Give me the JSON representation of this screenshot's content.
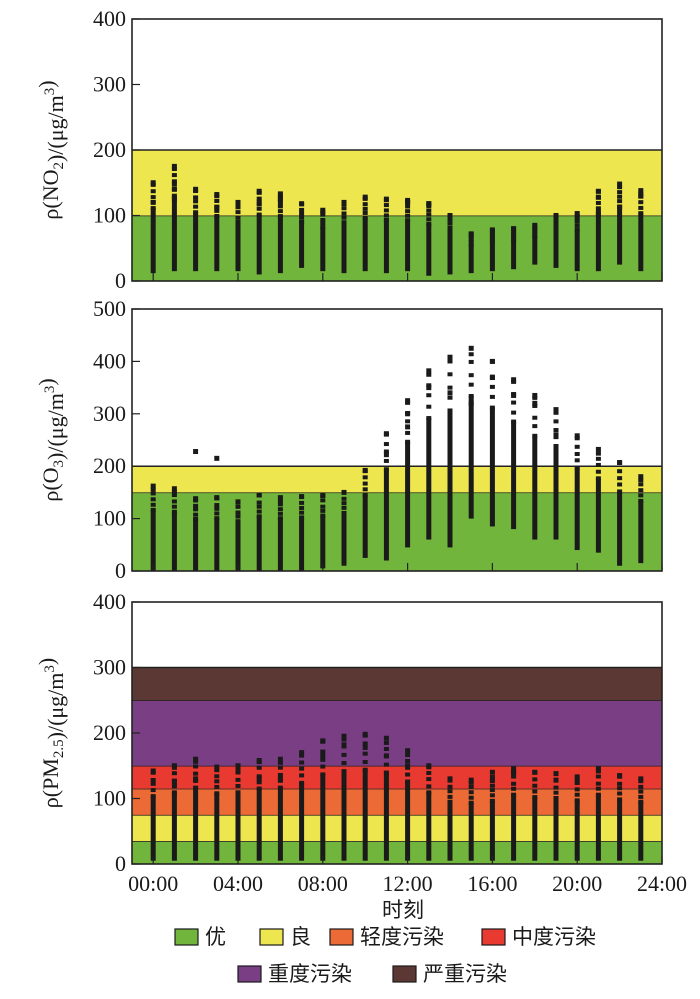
{
  "band_colors": {
    "excellent": "#72b53c",
    "good": "#ede64f",
    "light": "#ec6a35",
    "moderate": "#e83a31",
    "heavy": "#7a3e85",
    "severe": "#5c3834"
  },
  "legend": [
    {
      "key": "excellent",
      "label": "优"
    },
    {
      "key": "good",
      "label": "良"
    },
    {
      "key": "light",
      "label": "轻度污染"
    },
    {
      "key": "moderate",
      "label": "中度污染"
    },
    {
      "key": "heavy",
      "label": "重度污染"
    },
    {
      "key": "severe",
      "label": "严重污染"
    }
  ],
  "x_axis": {
    "title": "时刻",
    "tick_labels": [
      "00:00",
      "04:00",
      "08:00",
      "12:00",
      "16:00",
      "20:00",
      "24:00"
    ],
    "range": [
      -1,
      24
    ]
  },
  "chart_data": [
    {
      "type": "scatter",
      "id": "no2",
      "title": "",
      "ylabel_prefix": "ρ(NO",
      "ylabel_sub": "2",
      "ylabel_suffix": ")/(μg/m",
      "ylabel_sup": "3",
      "ylabel_end": ")",
      "ylim": [
        0,
        400
      ],
      "yticks": [
        0,
        100,
        200,
        300,
        400
      ],
      "bands": [
        {
          "key": "excellent",
          "from": 0,
          "to": 100
        },
        {
          "key": "good",
          "from": 100,
          "to": 200
        }
      ],
      "hours": [
        0,
        1,
        2,
        3,
        4,
        5,
        6,
        7,
        8,
        9,
        10,
        11,
        12,
        13,
        14,
        15,
        16,
        17,
        18,
        19,
        20,
        21,
        22,
        23
      ],
      "min": [
        12,
        15,
        15,
        15,
        15,
        10,
        12,
        20,
        15,
        12,
        15,
        12,
        15,
        8,
        10,
        12,
        15,
        18,
        25,
        20,
        15,
        15,
        25,
        15
      ],
      "max": [
        150,
        175,
        140,
        132,
        120,
        137,
        133,
        118,
        108,
        120,
        128,
        125,
        123,
        118,
        95,
        72,
        78,
        80,
        85,
        95,
        103,
        137,
        148,
        138
      ],
      "outliers": [
        [
          0,
          120
        ],
        [
          1,
          148
        ],
        [
          1,
          140
        ],
        [
          1,
          125
        ],
        [
          3,
          112
        ],
        [
          5,
          120
        ],
        [
          6,
          125
        ],
        [
          6,
          120
        ],
        [
          12,
          120
        ],
        [
          13,
          118
        ],
        [
          14,
          100
        ],
        [
          19,
          100
        ],
        [
          21,
          128
        ],
        [
          21,
          105
        ],
        [
          22,
          113
        ],
        [
          23,
          130
        ]
      ]
    },
    {
      "type": "scatter",
      "id": "o3",
      "title": "",
      "ylabel_prefix": "ρ(O",
      "ylabel_sub": "3",
      "ylabel_suffix": ")/(μg/m",
      "ylabel_sup": "3",
      "ylabel_end": ")",
      "ylim": [
        0,
        500
      ],
      "yticks": [
        0,
        100,
        200,
        300,
        400,
        500
      ],
      "bands": [
        {
          "key": "excellent",
          "from": 0,
          "to": 150
        },
        {
          "key": "good",
          "from": 150,
          "to": 200
        }
      ],
      "hours": [
        0,
        1,
        2,
        3,
        4,
        5,
        6,
        7,
        8,
        9,
        10,
        11,
        12,
        13,
        14,
        15,
        16,
        17,
        18,
        19,
        20,
        21,
        22,
        23
      ],
      "min": [
        0,
        0,
        0,
        0,
        0,
        0,
        0,
        0,
        5,
        10,
        25,
        20,
        45,
        60,
        45,
        100,
        85,
        80,
        60,
        60,
        40,
        35,
        10,
        15
      ],
      "max": [
        162,
        157,
        138,
        140,
        132,
        145,
        140,
        142,
        145,
        150,
        192,
        262,
        325,
        382,
        408,
        425,
        400,
        365,
        335,
        308,
        258,
        232,
        207,
        180
      ],
      "outliers": [
        [
          2,
          228
        ],
        [
          3,
          215
        ],
        [
          11,
          222
        ],
        [
          12,
          300
        ],
        [
          12,
          275
        ],
        [
          13,
          350
        ],
        [
          14,
          340
        ],
        [
          14,
          300
        ],
        [
          15,
          320
        ],
        [
          16,
          370
        ],
        [
          17,
          335
        ],
        [
          18,
          320
        ],
        [
          19,
          260
        ]
      ]
    },
    {
      "type": "scatter",
      "id": "pm25",
      "title": "",
      "ylabel_prefix": "ρ(PM",
      "ylabel_sub": "2.5",
      "ylabel_suffix": ")/(μg/m",
      "ylabel_sup": "3",
      "ylabel_end": ")",
      "ylim": [
        0,
        400
      ],
      "yticks": [
        0,
        100,
        200,
        300,
        400
      ],
      "bands": [
        {
          "key": "excellent",
          "from": 0,
          "to": 35
        },
        {
          "key": "good",
          "from": 35,
          "to": 75
        },
        {
          "key": "light",
          "from": 75,
          "to": 115
        },
        {
          "key": "moderate",
          "from": 115,
          "to": 150
        },
        {
          "key": "heavy",
          "from": 150,
          "to": 250
        },
        {
          "key": "severe",
          "from": 250,
          "to": 300
        }
      ],
      "hours": [
        0,
        1,
        2,
        3,
        4,
        5,
        6,
        7,
        8,
        9,
        10,
        11,
        12,
        13,
        14,
        15,
        16,
        17,
        18,
        19,
        20,
        21,
        22,
        23
      ],
      "min": [
        5,
        5,
        5,
        5,
        5,
        5,
        5,
        5,
        5,
        5,
        5,
        5,
        5,
        5,
        5,
        5,
        5,
        5,
        5,
        5,
        5,
        5,
        5,
        5
      ],
      "max": [
        142,
        150,
        160,
        148,
        150,
        158,
        160,
        170,
        188,
        195,
        198,
        192,
        173,
        150,
        130,
        128,
        132,
        145,
        140,
        138,
        133,
        145,
        135,
        130
      ],
      "outliers": [
        [
          1,
          125
        ],
        [
          2,
          130
        ],
        [
          5,
          130
        ],
        [
          6,
          130
        ],
        [
          8,
          165
        ],
        [
          9,
          182
        ],
        [
          10,
          178
        ],
        [
          11,
          165
        ],
        [
          12,
          150
        ],
        [
          16,
          140
        ],
        [
          17,
          140
        ],
        [
          19,
          128
        ]
      ]
    }
  ]
}
